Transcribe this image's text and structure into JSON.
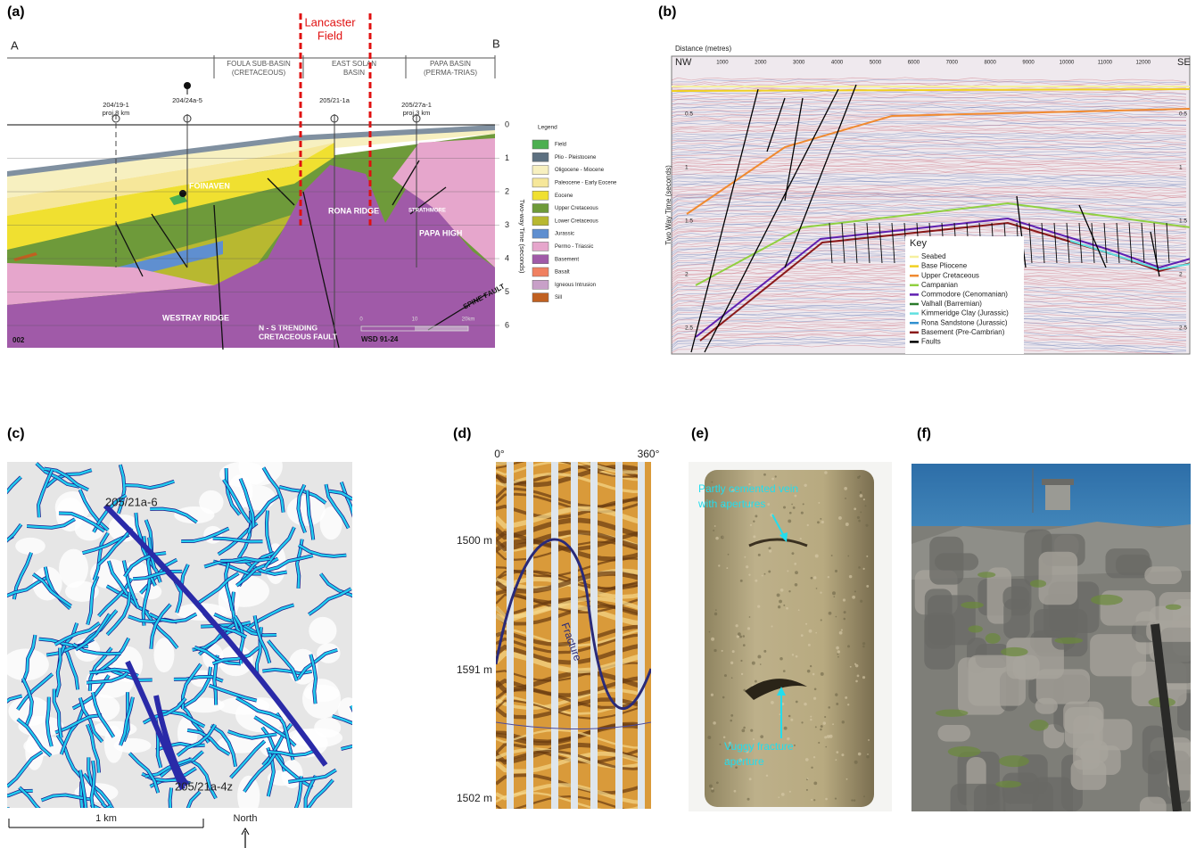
{
  "panels": {
    "a": {
      "label": "(a)",
      "end_left": "A",
      "end_right": "B",
      "field": [
        "Lancaster",
        "Field"
      ],
      "basins": [
        [
          "FOULA SUB-BASIN",
          "(CRETACEOUS)"
        ],
        [
          "EAST SOLAN",
          "BASIN"
        ],
        [
          "PAPA BASIN",
          "(PERMA-TRIAS)"
        ]
      ],
      "wells": [
        [
          "204/19-1",
          "proj.8 km"
        ],
        [
          "204/24a-5"
        ],
        [
          "205/21-1a"
        ],
        [
          "205/27a-1",
          "proj.3 km"
        ]
      ],
      "features": [
        "FOINAVEN",
        "RONA RIDGE",
        "STRATHMORE",
        "PAPA HIGH",
        "WESTRAY RIDGE",
        "N - S TRENDING",
        "CRETACEOUS FAULT",
        "SPINE FAULT",
        "WSD 91-24",
        "002"
      ],
      "time_axis": {
        "title": "Two-way Time (seconds)",
        "ticks": [
          0,
          1,
          2,
          3,
          4,
          5,
          6
        ]
      },
      "scale": {
        "ticks": [
          0,
          10
        ],
        "end": "20km"
      },
      "legend": {
        "title": "Legend",
        "items": [
          {
            "name": "Field",
            "color": "#4caf50"
          },
          {
            "name": "Plio - Pleistocene",
            "color": "#5c7080"
          },
          {
            "name": "Oligocene - Miocene",
            "color": "#f7f0c0"
          },
          {
            "name": "Paleocene - Early Eocene",
            "color": "#f6e79a"
          },
          {
            "name": "Eocene",
            "color": "#f0e030"
          },
          {
            "name": "Upper Cretaceous",
            "color": "#6e9a3a"
          },
          {
            "name": "Lower Cretaceous",
            "color": "#b8b830"
          },
          {
            "name": "Jurassic",
            "color": "#5f8fd0"
          },
          {
            "name": "Permo - Triassic",
            "color": "#e6a6cc"
          },
          {
            "name": "Basement",
            "color": "#a05aa8"
          },
          {
            "name": "Basalt",
            "color": "#f08060"
          },
          {
            "name": "Igneous Intrusion",
            "color": "#c8a0c8"
          },
          {
            "name": "Sill",
            "color": "#c06020"
          }
        ]
      }
    },
    "b": {
      "label": "(b)",
      "x_title": "Distance (metres)",
      "left_end": "NW",
      "right_end": "SE",
      "x_ticks": [
        1000,
        2000,
        3000,
        4000,
        5000,
        6000,
        7000,
        8000,
        9000,
        10000,
        11000,
        12000
      ],
      "y_title": "Two Way Time (seconds)",
      "y_ticks": [
        0.5,
        1.0,
        1.5,
        2.0,
        2.5
      ],
      "key": {
        "title": "Key",
        "items": [
          {
            "name": "Seabed",
            "color": "#f5f0a0"
          },
          {
            "name": "Base Pliocene",
            "color": "#f0d020"
          },
          {
            "name": "Upper Cretaceous",
            "color": "#f08a30"
          },
          {
            "name": "Campanian",
            "color": "#90d040"
          },
          {
            "name": "Commodore (Cenomanian)",
            "color": "#6020b0"
          },
          {
            "name": "Valhall (Barremian)",
            "color": "#2a7a2a"
          },
          {
            "name": "Kimmeridge Clay (Jurassic)",
            "color": "#60e0e0"
          },
          {
            "name": "Rona Sandstone (Jurassic)",
            "color": "#3090d0"
          },
          {
            "name": "Basement (Pre-Cambrian)",
            "color": "#8b1a1a"
          },
          {
            "name": "Faults",
            "color": "#000000"
          }
        ]
      }
    },
    "c": {
      "label": "(c)",
      "wells": [
        "205/21a-6",
        "205/21a-4z"
      ],
      "scale": "1 km",
      "north": "North"
    },
    "d": {
      "label": "(d)",
      "azimuth": [
        "0°",
        "360°"
      ],
      "depths": [
        "1500 m",
        "1591 m",
        "1502 m"
      ],
      "feature": "Fracture"
    },
    "e": {
      "label": "(e)",
      "notes": [
        [
          "Partly cemented vein",
          "with apertures"
        ],
        [
          "Vuggy fracture",
          "aperture"
        ]
      ]
    },
    "f": {
      "label": "(f)"
    }
  }
}
